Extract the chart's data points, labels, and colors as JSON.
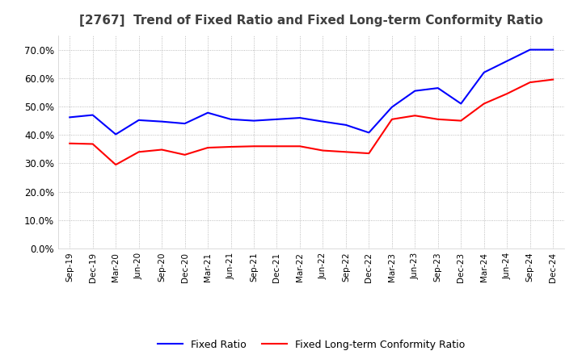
{
  "title": "[2767]  Trend of Fixed Ratio and Fixed Long-term Conformity Ratio",
  "title_color": "#404040",
  "background_color": "#ffffff",
  "plot_bg_color": "#ffffff",
  "grid_color": "#aaaaaa",
  "ylim": [
    0.0,
    0.75
  ],
  "yticks": [
    0.0,
    0.1,
    0.2,
    0.3,
    0.4,
    0.5,
    0.6,
    0.7
  ],
  "legend_labels": [
    "Fixed Ratio",
    "Fixed Long-term Conformity Ratio"
  ],
  "line_colors": [
    "#0000ff",
    "#ff0000"
  ],
  "x_labels": [
    "Sep-19",
    "Dec-19",
    "Mar-20",
    "Jun-20",
    "Sep-20",
    "Dec-20",
    "Mar-21",
    "Jun-21",
    "Sep-21",
    "Dec-21",
    "Mar-22",
    "Jun-22",
    "Sep-22",
    "Dec-22",
    "Mar-23",
    "Jun-23",
    "Sep-23",
    "Dec-23",
    "Mar-24",
    "Jun-24",
    "Sep-24",
    "Dec-24"
  ],
  "fixed_ratio": [
    0.462,
    0.47,
    0.402,
    0.452,
    0.447,
    0.44,
    0.478,
    0.455,
    0.45,
    0.455,
    0.46,
    0.447,
    0.435,
    0.408,
    0.498,
    0.555,
    0.565,
    0.51,
    0.62,
    0.66,
    0.7,
    0.7
  ],
  "fixed_lt_ratio": [
    0.37,
    0.368,
    0.295,
    0.34,
    0.348,
    0.33,
    0.355,
    0.358,
    0.36,
    0.36,
    0.36,
    0.345,
    0.34,
    0.335,
    0.455,
    0.468,
    0.455,
    0.45,
    0.51,
    0.545,
    0.585,
    0.595
  ]
}
